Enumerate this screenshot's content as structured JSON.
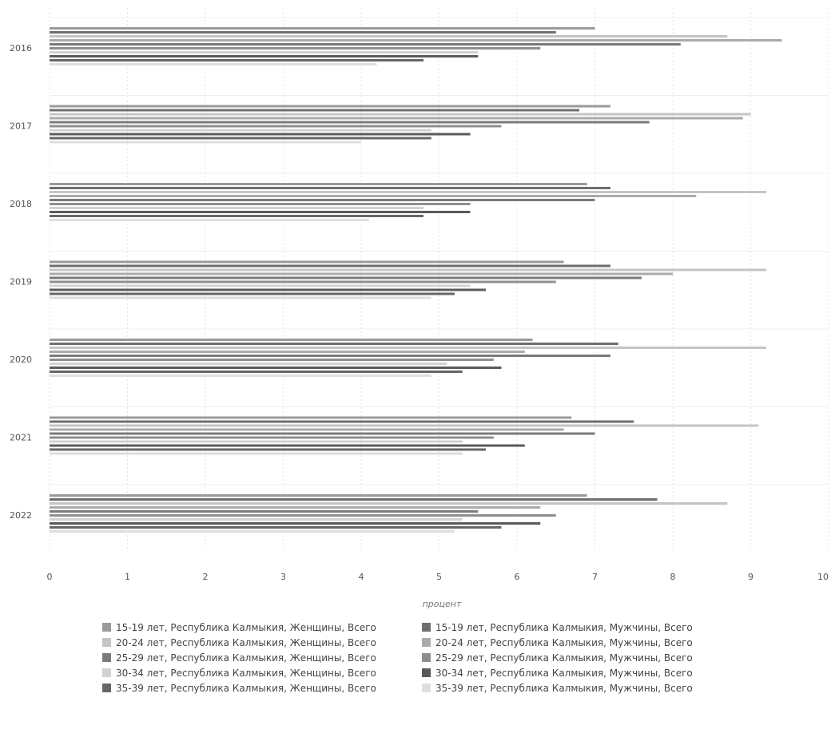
{
  "chart_data": {
    "type": "bar",
    "orientation": "horizontal",
    "title": "",
    "xlabel": "процент",
    "ylabel": "",
    "xlim": [
      0,
      10
    ],
    "x_ticks": [
      "0",
      "1",
      "2",
      "3",
      "4",
      "5",
      "6",
      "7",
      "8",
      "9",
      "10"
    ],
    "categories": [
      "2016",
      "2017",
      "2018",
      "2019",
      "2020",
      "2021",
      "2022"
    ],
    "grid": true,
    "legend_position": "bottom",
    "series": [
      {
        "name": "15-19 лет, Республика Калмыкия, Женщины, Всего",
        "color": "#9a9a9a",
        "values": [
          7.0,
          7.2,
          6.9,
          6.6,
          6.2,
          6.7,
          6.9
        ]
      },
      {
        "name": "15-19 лет, Республика Калмыкия, Мужчины, Всего",
        "color": "#6e6e6e",
        "values": [
          6.5,
          6.8,
          7.2,
          7.2,
          7.3,
          7.5,
          7.8
        ]
      },
      {
        "name": "20-24 лет, Республика Калмыкия, Женщины, Всего",
        "color": "#c4c4c4",
        "values": [
          8.7,
          9.0,
          9.2,
          9.2,
          9.2,
          9.1,
          8.7
        ]
      },
      {
        "name": "20-24 лет, Республика Калмыкия, Мужчины, Всего",
        "color": "#aaaaaa",
        "values": [
          9.4,
          8.9,
          8.3,
          8.0,
          6.1,
          6.6,
          6.3
        ]
      },
      {
        "name": "25-29 лет, Республика Калмыкия, Женщины, Всего",
        "color": "#7a7a7a",
        "values": [
          8.1,
          7.7,
          7.0,
          7.6,
          7.2,
          7.0,
          5.5
        ]
      },
      {
        "name": "25-29 лет, Республика Калмыкия, Мужчины, Всего",
        "color": "#8e8e8e",
        "values": [
          6.3,
          5.8,
          5.4,
          6.5,
          5.7,
          5.7,
          6.5
        ]
      },
      {
        "name": "30-34 лет, Республика Калмыкия, Женщины, Всего",
        "color": "#d2d2d2",
        "values": [
          5.5,
          4.9,
          4.8,
          5.4,
          5.1,
          5.3,
          5.3
        ]
      },
      {
        "name": "30-34 лет, Республика Калмыкия, Мужчины, Всего",
        "color": "#5a5a5a",
        "values": [
          5.5,
          5.4,
          5.4,
          5.6,
          5.8,
          6.1,
          6.3
        ]
      },
      {
        "name": "35-39 лет, Республика Калмыкия, Женщины, Всего",
        "color": "#666666",
        "values": [
          4.8,
          4.9,
          4.8,
          5.2,
          5.3,
          5.6,
          5.8
        ]
      },
      {
        "name": "35-39 лет, Республика Калмыкия, Мужчины, Всего",
        "color": "#dedede",
        "values": [
          4.2,
          4.0,
          4.1,
          4.9,
          4.9,
          5.3,
          5.2
        ]
      }
    ]
  }
}
